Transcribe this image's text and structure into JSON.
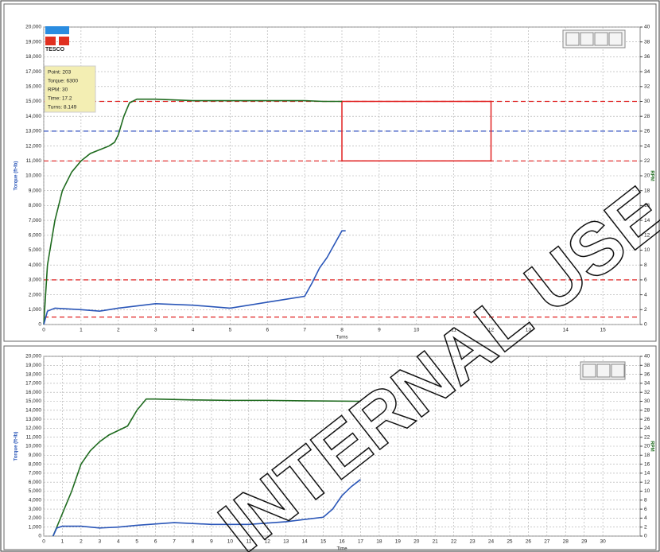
{
  "chart_data": [
    {
      "type": "line",
      "xlabel": "Turns",
      "ylabel": "Torque (ft-lb)",
      "y2label": "RPM",
      "xlim": [
        0,
        16
      ],
      "xticks": [
        0,
        1,
        2,
        3,
        4,
        5,
        6,
        7,
        8,
        9,
        10,
        11,
        12,
        13,
        14,
        15
      ],
      "ylim": [
        0,
        20000
      ],
      "yticks": [
        0,
        {
          "value": 1000,
          "label": "1,000"
        },
        {
          "value": 2000,
          "label": "2,000"
        },
        {
          "value": 3000,
          "label": "3,000"
        },
        {
          "value": 4000,
          "label": "4,000"
        },
        {
          "value": 5000,
          "label": "5,000"
        },
        {
          "value": 6000,
          "label": "6,000"
        },
        {
          "value": 7000,
          "label": "7,000"
        },
        {
          "value": 8000,
          "label": "8,000"
        },
        {
          "value": 9000,
          "label": "9,000"
        },
        {
          "value": 10000,
          "label": "10,000"
        },
        {
          "value": 11000,
          "label": "11,000"
        },
        {
          "value": 12000,
          "label": "12,000"
        },
        {
          "value": 13000,
          "label": "13,000"
        },
        {
          "value": 14000,
          "label": "14,000"
        },
        {
          "value": 15000,
          "label": "15,000"
        },
        {
          "value": 16000,
          "label": "16,000"
        },
        {
          "value": 17000,
          "label": "17,000"
        },
        {
          "value": 18000,
          "label": "18,000"
        },
        {
          "value": 19000,
          "label": "19,000"
        },
        {
          "value": 20000,
          "label": "20,000"
        }
      ],
      "y2lim": [
        0,
        40
      ],
      "y2ticks": [
        0,
        2,
        4,
        6,
        8,
        10,
        12,
        14,
        16,
        18,
        20,
        22,
        24,
        26,
        28,
        30,
        32,
        34,
        36,
        38,
        40
      ],
      "grid": true,
      "series": [
        {
          "color": "#1f6b1f",
          "axis": "y2",
          "x": [
            0,
            0.1,
            0.3,
            0.5,
            0.75,
            1,
            1.25,
            1.5,
            1.75,
            1.9,
            2,
            2.15,
            2.3,
            2.5,
            3,
            4,
            5,
            6,
            7,
            7.5,
            8
          ],
          "values": [
            0,
            8,
            14,
            18,
            20.5,
            22,
            23,
            23.5,
            24,
            24.5,
            25.5,
            28,
            29.8,
            30.3,
            30.3,
            30.1,
            30.1,
            30.1,
            30.1,
            30,
            30
          ]
        },
        {
          "color": "#2a56b8",
          "axis": "y",
          "x": [
            0,
            0.1,
            0.3,
            1,
            1.5,
            2,
            3,
            4,
            5,
            6,
            7,
            7.2,
            7.4,
            7.6,
            7.8,
            8,
            8.1
          ],
          "values": [
            0,
            900,
            1100,
            1000,
            900,
            1100,
            1400,
            1300,
            1100,
            1500,
            1900,
            2800,
            3800,
            4500,
            5400,
            6300,
            6300
          ]
        }
      ],
      "reference_lines": [
        {
          "value": 15000,
          "color": "#e02020"
        },
        {
          "value": 13000,
          "color": "#3050c0"
        },
        {
          "value": 11000,
          "color": "#e02020"
        },
        {
          "value": 3000,
          "color": "#e02020"
        },
        {
          "value": 500,
          "color": "#e02020"
        }
      ],
      "box": {
        "x": [
          8,
          12
        ],
        "y": [
          11000,
          15000
        ],
        "color": "#e02020"
      }
    },
    {
      "type": "line",
      "xlabel": "Time",
      "ylabel": "Torque (ft-lb)",
      "y2label": "RPM",
      "xlim": [
        0,
        32
      ],
      "xticks": [
        0,
        1,
        2,
        3,
        4,
        5,
        6,
        7,
        8,
        9,
        10,
        11,
        12,
        13,
        14,
        15,
        16,
        17,
        18,
        19,
        20,
        21,
        22,
        23,
        24,
        25,
        26,
        27,
        28,
        29,
        30
      ],
      "ylim": [
        0,
        20000
      ],
      "yticks": [
        0,
        {
          "value": 1000,
          "label": "1,000"
        },
        {
          "value": 2000,
          "label": "2,000"
        },
        {
          "value": 3000,
          "label": "3,000"
        },
        {
          "value": 4000,
          "label": "4,000"
        },
        {
          "value": 5000,
          "label": "5,000"
        },
        {
          "value": 6000,
          "label": "6,000"
        },
        {
          "value": 7000,
          "label": "7,000"
        },
        {
          "value": 8000,
          "label": "8,000"
        },
        {
          "value": 9000,
          "label": "9,000"
        },
        {
          "value": 10000,
          "label": "10,000"
        },
        {
          "value": 11000,
          "label": "11,000"
        },
        {
          "value": 12000,
          "label": "12,000"
        },
        {
          "value": 13000,
          "label": "13,000"
        },
        {
          "value": 14000,
          "label": "14,000"
        },
        {
          "value": 15000,
          "label": "15,000"
        },
        {
          "value": 16000,
          "label": "16,000"
        },
        {
          "value": 17000,
          "label": "17,000"
        },
        {
          "value": 18000,
          "label": "18,000"
        },
        {
          "value": 19000,
          "label": "19,000"
        },
        {
          "value": 20000,
          "label": "20,000"
        }
      ],
      "y2lim": [
        0,
        40
      ],
      "y2ticks": [
        0,
        2,
        4,
        6,
        8,
        10,
        12,
        14,
        16,
        18,
        20,
        22,
        24,
        26,
        28,
        30,
        32,
        34,
        36,
        38,
        40
      ],
      "grid": true,
      "series": [
        {
          "color": "#1f6b1f",
          "axis": "y2",
          "x": [
            0.5,
            1,
            1.5,
            2,
            2.5,
            3,
            3.5,
            4,
            4.5,
            5,
            5.5,
            6,
            8,
            10,
            12,
            14,
            17
          ],
          "values": [
            0,
            5,
            10,
            16,
            19,
            21,
            22.5,
            23.5,
            24.5,
            28,
            30.5,
            30.5,
            30.3,
            30.2,
            30.2,
            30.1,
            30
          ]
        },
        {
          "color": "#2a56b8",
          "axis": "y",
          "x": [
            0.5,
            0.7,
            1,
            2,
            3,
            4,
            5,
            7,
            9,
            11,
            13,
            15,
            15.5,
            16,
            16.5,
            17
          ],
          "values": [
            0,
            900,
            1100,
            1100,
            900,
            1000,
            1200,
            1500,
            1300,
            1300,
            1600,
            2100,
            3000,
            4500,
            5500,
            6300
          ]
        }
      ]
    }
  ],
  "info_box": {
    "lines": [
      "Point:   203",
      "Torque:  6300",
      "RPM:    30",
      "Time:    17.2",
      "Turns:   8.149"
    ]
  },
  "logo": "TESCO",
  "watermark": "INTERNAL USE"
}
